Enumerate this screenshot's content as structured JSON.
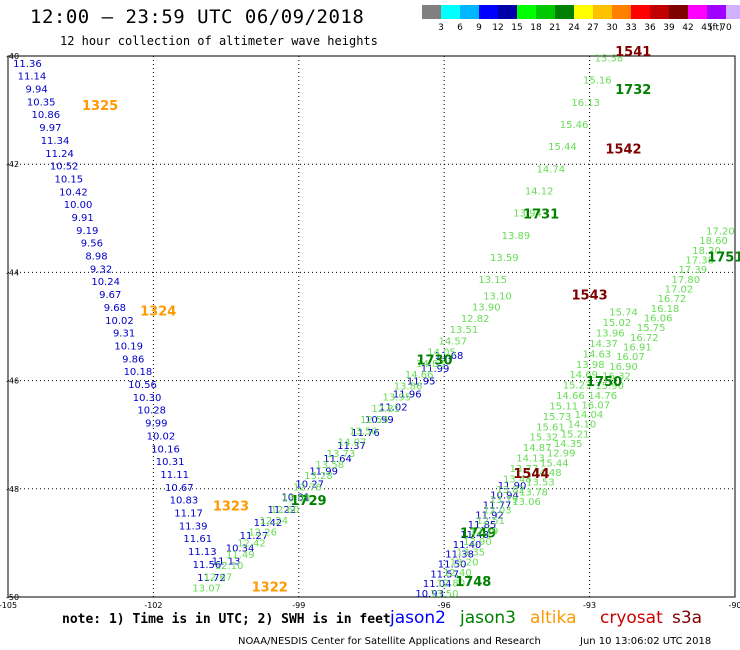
{
  "title": "12:00 – 23:59 UTC 06/09/2018",
  "subtitle": "12 hour collection of altimeter wave heights",
  "legend": {
    "colors": [
      "#808080",
      "#00ffff",
      "#00b7ff",
      "#0000ff",
      "#0000a8",
      "#00ff00",
      "#00c800",
      "#008000",
      "#ffff00",
      "#ffc000",
      "#ff8000",
      "#ff0000",
      "#c00000",
      "#800000",
      "#ff00ff",
      "#a000ff",
      "#d0b0ff",
      "#000000"
    ],
    "labels": [
      "3",
      "6",
      "9",
      "12",
      "15",
      "18",
      "21",
      "24",
      "27",
      "30",
      "33",
      "36",
      "39",
      "42",
      "45",
      "70"
    ],
    "unit": "(ft)"
  },
  "axes": {
    "lon_ticks": [
      "-105",
      "-102",
      "-99",
      "-96",
      "-93",
      "-90"
    ],
    "lat_ticks": [
      "-40",
      "-42",
      "-44",
      "-46",
      "-48",
      "-50"
    ],
    "lon_range": [
      -105,
      -90
    ],
    "lat_range": [
      -50,
      -40
    ]
  },
  "tracks": [
    {
      "id": "jason2-1325",
      "lon_start": -104.6,
      "lat_start": -40.2,
      "lon_end": -100.8,
      "lat_end": -49.7,
      "label": "1325",
      "label_lon": -103.1,
      "label_lat": -41.0,
      "satellite": "altika",
      "values": [
        "11.36",
        "11.14",
        "9.94",
        "10.35",
        "10.86",
        "9.97",
        "11.34",
        "11.24",
        "10.52",
        "10.15",
        "10.42",
        "10.00",
        "9.91",
        "9.19",
        "9.56",
        "8.98",
        "9.32",
        "10.24",
        "9.67",
        "9.68",
        "10.02",
        "9.31",
        "10.19",
        "9.86",
        "10.18",
        "10.56",
        "10.30",
        "10.28",
        "9.99",
        "10.02",
        "10.16",
        "10.31",
        "11.11",
        "10.67",
        "10.83",
        "11.17",
        "11.39",
        "11.61",
        "11.13",
        "11.56",
        "11.72"
      ]
    },
    {
      "id": "altika-1324",
      "lon_start": -101.9,
      "lat_start": -44.8,
      "lon_end": -101.9,
      "lat_end": -44.8,
      "label": "1324",
      "label_lon": -101.9,
      "label_lat": -44.8,
      "satellite": "altika",
      "values": []
    },
    {
      "id": "altika-1323",
      "lon_start": -100.4,
      "lat_start": -48.4,
      "lon_end": -100.4,
      "lat_end": -48.4,
      "label": "1323",
      "label_lon": -100.4,
      "label_lat": -48.4,
      "satellite": "altika",
      "values": []
    },
    {
      "id": "altika-1322",
      "lon_start": -99.6,
      "lat_start": -49.9,
      "lon_end": -99.6,
      "lat_end": -49.9,
      "label": "1322",
      "label_lon": -99.6,
      "label_lat": -49.9,
      "satellite": "altika",
      "values": []
    },
    {
      "id": "jason2-1729",
      "lon_start": -100.5,
      "lat_start": -49.4,
      "lon_end": -95.9,
      "lat_end": -45.6,
      "label": "1729",
      "label_lon": -98.8,
      "label_lat": -48.3,
      "satellite": "jason3",
      "values": [
        "11.13",
        "10.34",
        "11.27",
        "11.42",
        "11.22",
        "10.81",
        "10.27",
        "11.99",
        "11.64",
        "11.37",
        "11.76",
        "10.99",
        "11.02",
        "11.96",
        "11.95",
        "11.99",
        "11.68"
      ]
    },
    {
      "id": "jason3-1730",
      "lon_start": -100.9,
      "lat_start": -49.9,
      "lon_end": -94.9,
      "lat_end": -44.5,
      "label": "1730",
      "label_lon": -96.2,
      "label_lat": -45.7,
      "satellite": "jason3",
      "values": [
        "13.07",
        "12.67",
        "12.10",
        "11.49",
        "12.42",
        "12.26",
        "12.24",
        "12.60",
        "13.03",
        "12.76",
        "13.28",
        "13.58",
        "13.73",
        "14.07",
        "13.50",
        "12.55",
        "12.81",
        "13.95",
        "13.86",
        "14.66",
        "14.83",
        "14.05",
        "14.57",
        "13.51",
        "12.82",
        "13.90",
        "13.10"
      ]
    },
    {
      "id": "jason3-1731",
      "lon_start": -95.0,
      "lat_start": -44.2,
      "lon_end": -92.6,
      "lat_end": -40.1,
      "label": "1731",
      "label_lon": -94.0,
      "label_lat": -43.0,
      "satellite": "jason3",
      "values": [
        "13.15",
        "13.59",
        "13.89",
        "13.94",
        "14.12",
        "14.74",
        "15.44",
        "15.46",
        "16.13",
        "15.16",
        "15.58"
      ]
    },
    {
      "id": "jason3-1732",
      "lon_start": -92.6,
      "lat_start": -40.6,
      "lon_end": -92.6,
      "lat_end": -40.6,
      "label": "1732",
      "label_lon": -92.1,
      "label_lat": -40.7,
      "satellite": "jason3",
      "values": []
    },
    {
      "id": "jason2-1749",
      "lon_start": -96.3,
      "lat_start": -50.0,
      "lon_end": -94.6,
      "lat_end": -48.0,
      "label": "1749",
      "label_lon": -95.3,
      "label_lat": -48.9,
      "satellite": "jason3",
      "values": [
        "10.93",
        "11.04",
        "11.57",
        "11.50",
        "11.38",
        "11.40",
        "11.48",
        "11.85",
        "11.92",
        "11.77",
        "10.94",
        "11.90"
      ]
    },
    {
      "id": "jason3-1748",
      "lon_start": -96.0,
      "lat_start": -50.0,
      "lon_end": -92.3,
      "lat_end": -44.8,
      "label": "1748",
      "label_lon": -95.4,
      "label_lat": -49.8,
      "satellite": "jason3",
      "values": [
        "13.50",
        "12.80",
        "12.40",
        "13.20",
        "13.35",
        "12.90",
        "12.19",
        "12.51",
        "12.03",
        "13.79",
        "13.82",
        "13.48",
        "13.77",
        "14.13",
        "14.87",
        "15.32",
        "15.61",
        "15.73",
        "15.11",
        "14.66",
        "15.23",
        "14.69",
        "13.98",
        "14.63",
        "14.37",
        "13.96",
        "15.02",
        "15.74"
      ]
    },
    {
      "id": "jason3-1750",
      "lon_start": -94.3,
      "lat_start": -48.3,
      "lon_end": -90.3,
      "lat_end": -43.3,
      "label": "1750",
      "label_lon": -92.7,
      "label_lat": -46.1,
      "satellite": "jason3",
      "values": [
        "13.06",
        "13.78",
        "13.53",
        "14.48",
        "15.44",
        "12.99",
        "14.35",
        "15.21",
        "14.10",
        "14.04",
        "16.07",
        "14.76",
        "15.90",
        "16.32",
        "16.90",
        "16.07",
        "16.91",
        "16.72",
        "15.75",
        "16.06",
        "16.18",
        "16.72",
        "17.02",
        "17.80",
        "17.39",
        "17.38",
        "18.20",
        "18.60",
        "17.20"
      ]
    },
    {
      "id": "jason3-1751",
      "lon_start": -90.3,
      "lat_start": -44.4,
      "lon_end": -90.3,
      "lat_end": -44.4,
      "label": "1751",
      "label_lon": -90.2,
      "label_lat": -43.8,
      "satellite": "jason3",
      "values": []
    },
    {
      "id": "cryo-1541",
      "lon_start": -92.1,
      "lat_start": -40.3,
      "lon_end": -92.1,
      "lat_end": -40.3,
      "label": "1541",
      "label_lon": -92.1,
      "label_lat": -40.0,
      "satellite": "cryosat",
      "values": []
    },
    {
      "id": "cryo-1542",
      "lon_start": -92.3,
      "lat_start": -41.8,
      "lon_end": -92.3,
      "lat_end": -41.8,
      "label": "1542",
      "label_lon": -92.3,
      "label_lat": -41.8,
      "satellite": "cryosat",
      "values": []
    },
    {
      "id": "cryo-1543",
      "lon_start": -93.0,
      "lat_start": -44.5,
      "lon_end": -93.0,
      "lat_end": -44.5,
      "label": "1543",
      "label_lon": -93.0,
      "label_lat": -44.5,
      "satellite": "cryosat",
      "values": []
    },
    {
      "id": "cryo-1544",
      "lon_start": -94.2,
      "lat_start": -47.8,
      "lon_end": -94.2,
      "lat_end": -47.8,
      "label": "1544",
      "label_lon": -94.2,
      "label_lat": -47.8,
      "satellite": "cryosat",
      "values": []
    }
  ],
  "satellites": {
    "jason2": {
      "name": "jason2",
      "color": "#0000ff"
    },
    "jason3": {
      "name": "jason3",
      "color": "#008000"
    },
    "altika": {
      "name": "altika",
      "color": "#ff9900"
    },
    "cryosat": {
      "name": "cryosat",
      "color": "#cc0000"
    },
    "s3a": {
      "name": "s3a",
      "color": "#800000"
    },
    "light": {
      "color": "#66dd55"
    }
  },
  "note": "note: 1) Time is in UTC; 2) SWH is in feet",
  "credit": "NOAA/NESDIS Center for Satellite Applications and Research",
  "issued": "Jun 10 13:06:02 UTC 2018"
}
